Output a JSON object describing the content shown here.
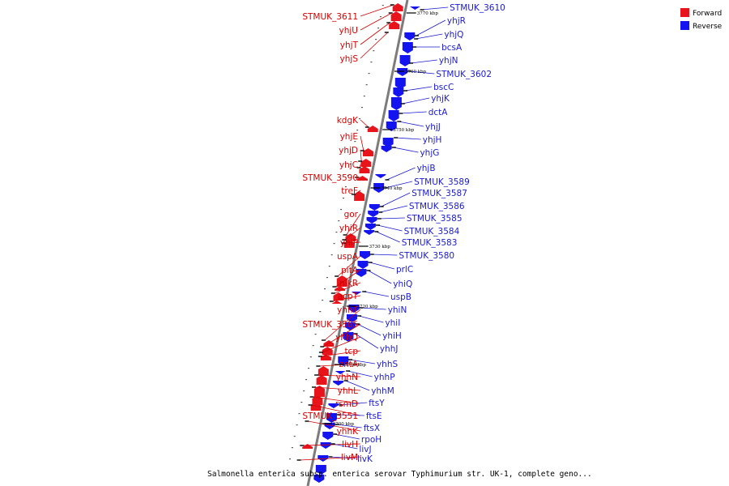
{
  "caption": "Salmonella enterica subsp. enterica serovar Typhimurium str. UK-1, complete geno...",
  "legend": [
    {
      "label": "Forward",
      "color": "#e8141b"
    },
    {
      "label": "Reverse",
      "color": "#1414f0"
    }
  ],
  "colors": {
    "forward": "#e8141b",
    "reverse": "#1414f0",
    "forward_text": "#d40000",
    "reverse_text": "#1a1ad0",
    "backbone": "#8c8c8c"
  },
  "scale_ticks": [
    "3770 kbp",
    "3760 kbp",
    "3750 kbp",
    "3740 kbp",
    "3730 kbp",
    "3720 kbp",
    "3710 kbp",
    "3700 kbp"
  ],
  "forward_genes": [
    "STMUK_3611",
    "yhjU",
    "yhjT",
    "yhjS",
    "kdgK",
    "yhjE",
    "yhjD",
    "yhjC",
    "STMUK_3590",
    "treF",
    "gor",
    "yhiR",
    "yhiP",
    "uspA",
    "pitA",
    "nikR",
    "acpT",
    "yhhT",
    "STMUK_3565",
    "yhhQ",
    "tcp",
    "zntA",
    "yhhN",
    "yhhL",
    "rsmD",
    "STMUK_3551",
    "yhhK",
    "livH",
    "livM"
  ],
  "reverse_genes": [
    "STMUK_3610",
    "yhjR",
    "yhjQ",
    "bcsA",
    "yhjN",
    "STMUK_3602",
    "bscC",
    "yhjK",
    "dctA",
    "yhjJ",
    "yhjH",
    "yhjG",
    "yhjB",
    "STMUK_3589",
    "STMUK_3587",
    "STMUK_3586",
    "STMUK_3585",
    "STMUK_3584",
    "STMUK_3583",
    "STMUK_3580",
    "prlC",
    "yhiQ",
    "uspB",
    "yhiN",
    "yhiI",
    "yhiH",
    "yhhJ",
    "yhhS",
    "yhhP",
    "yhhM",
    "ftsY",
    "ftsE",
    "ftsX",
    "rpoH",
    "livJ",
    "livK"
  ]
}
